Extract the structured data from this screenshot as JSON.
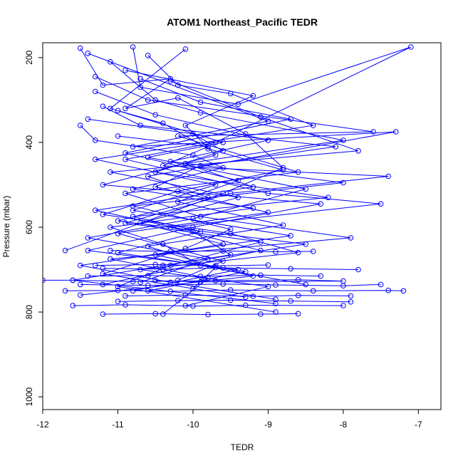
{
  "chart_data": {
    "type": "line",
    "title": "ATOM1 Northeast_Pacific TEDR",
    "xlabel": "TEDR",
    "ylabel": "Pressure (mbar)",
    "xlim": [
      -12.0,
      -6.7
    ],
    "ylim": [
      1030,
      165
    ],
    "y_reversed": true,
    "xticks": [
      -12,
      -11,
      -10,
      -9,
      -8,
      -7
    ],
    "xtick_labels": [
      "-12",
      "-11",
      "-10",
      "-9",
      "-8",
      "-7"
    ],
    "yticks": [
      200,
      400,
      600,
      800,
      1000
    ],
    "ytick_labels": [
      "200",
      "400",
      "600",
      "800",
      "1000"
    ],
    "grid": false,
    "series_color": "#0000ff",
    "marker": "open-circle",
    "series": [
      {
        "name": "",
        "x": [
          -11.5,
          -11.2,
          -10.3,
          -10.9,
          -10.2,
          -9.3,
          -8.8,
          -9.6,
          -11.7
        ],
        "y": [
          178,
          265,
          250,
          320,
          295,
          380,
          460,
          520,
          655
        ]
      },
      {
        "name": "",
        "x": [
          -11.4,
          -9.0,
          -10.8,
          -7.3,
          -10.6,
          -9.8,
          -11.0,
          -8.5,
          -10.4
        ],
        "y": [
          190,
          350,
          410,
          375,
          480,
          530,
          585,
          640,
          690
        ]
      },
      {
        "name": "",
        "x": [
          -11.1,
          -10.5,
          -9.9,
          -8.0,
          -10.1,
          -9.2,
          -11.3,
          -10.0,
          -9.5,
          -11.6,
          -8.9
        ],
        "y": [
          210,
          300,
          330,
          395,
          450,
          505,
          560,
          610,
          665,
          725,
          780
        ]
      },
      {
        "name": "",
        "x": [
          -10.8,
          -10.7,
          -9.4,
          -7.1,
          -9.7,
          -10.9,
          -9.0,
          -7.5,
          -10.3,
          -9.1,
          -11.2
        ],
        "y": [
          175,
          270,
          310,
          175,
          400,
          440,
          520,
          545,
          600,
          655,
          735
        ]
      },
      {
        "name": "",
        "x": [
          -11.4,
          -10.0,
          -9.6,
          -10.5,
          -8.2,
          -10.8,
          -9.9,
          -11.0,
          -9.3,
          -10.6
        ],
        "y": [
          345,
          380,
          420,
          470,
          530,
          575,
          610,
          660,
          705,
          750
        ]
      },
      {
        "name": "",
        "x": [
          -11.0,
          -10.4,
          -9.8,
          -8.8,
          -10.2,
          -11.2,
          -9.5,
          -8.6,
          -10.7,
          -9.0,
          -10.1
        ],
        "y": [
          325,
          355,
          415,
          465,
          515,
          570,
          615,
          660,
          700,
          740,
          785
        ]
      },
      {
        "name": "",
        "x": [
          -10.3,
          -9.1,
          -7.8,
          -11.1,
          -9.4,
          -10.7,
          -9.6,
          -11.5,
          -10.3,
          -8.9
        ],
        "y": [
          255,
          340,
          420,
          470,
          530,
          590,
          640,
          690,
          730,
          770
        ]
      },
      {
        "name": "",
        "x": [
          -11.3,
          -10.6,
          -7.6,
          -10.2,
          -8.6,
          -10.9,
          -9.9,
          -7.9,
          -11.1,
          -9.8,
          -10.4
        ],
        "y": [
          245,
          300,
          375,
          385,
          470,
          520,
          575,
          625,
          675,
          720,
          805
        ]
      },
      {
        "name": "",
        "x": [
          -10.9,
          -9.2,
          -10.1,
          -9.7,
          -11.2,
          -8.3,
          -10.0,
          -11.4,
          -9.4,
          -10.8
        ],
        "y": [
          230,
          290,
          360,
          430,
          500,
          545,
          600,
          655,
          700,
          750
        ]
      },
      {
        "name": "",
        "x": [
          -11.2,
          -10.7,
          -8.1,
          -9.9,
          -10.5,
          -9.0,
          -11.0,
          -9.6,
          -10.2
        ],
        "y": [
          315,
          360,
          410,
          455,
          505,
          565,
          615,
          680,
          725
        ]
      },
      {
        "name": "",
        "x": [
          -10.6,
          -10.2,
          -9.5,
          -8.4,
          -11.3,
          -9.7,
          -10.8,
          -8.7,
          -10.5,
          -9.2,
          -11.5
        ],
        "y": [
          195,
          265,
          285,
          360,
          440,
          500,
          560,
          620,
          665,
          715,
          760
        ]
      },
      {
        "name": "",
        "x": [
          -11.0,
          -9.8,
          -10.4,
          -7.4,
          -9.5,
          -10.9,
          -9.1,
          -10.3,
          -11.0,
          -8.9
        ],
        "y": [
          385,
          410,
          455,
          480,
          520,
          590,
          635,
          690,
          740,
          800
        ]
      },
      {
        "name": "",
        "x": [
          -10.1,
          -11.1,
          -9.6,
          -10.6,
          -8.5,
          -10.0,
          -11.4,
          -9.8,
          -10.7
        ],
        "y": [
          180,
          320,
          400,
          435,
          510,
          580,
          625,
          675,
          730
        ]
      },
      {
        "name": "",
        "x": [
          -11.3,
          -10.5,
          -9.0,
          -10.3,
          -8.0,
          -10.8,
          -9.5,
          -10.1,
          -11.2,
          -9.3
        ],
        "y": [
          280,
          335,
          395,
          445,
          495,
          550,
          605,
          650,
          710,
          765
        ]
      },
      {
        "name": "",
        "x": [
          -10.7,
          -9.9,
          -8.7,
          -10.9,
          -9.4,
          -10.2,
          -8.8,
          -10.6,
          -9.7,
          -10.0
        ],
        "y": [
          250,
          305,
          345,
          425,
          490,
          540,
          595,
          645,
          695,
          745
        ]
      },
      {
        "name": "",
        "x": [
          -11.5,
          -11.3,
          -10.0,
          -9.6,
          -10.8,
          -9.2,
          -11.1,
          -10.4,
          -9.9,
          -8.5
        ],
        "y": [
          360,
          395,
          430,
          460,
          510,
          555,
          600,
          640,
          690,
          735
        ]
      },
      {
        "name": "",
        "x": [
          -12.0,
          -11.6,
          -10.8,
          -9.7,
          -8.6,
          -8.0,
          -9.9,
          -10.5
        ],
        "y": [
          725,
          725,
          728,
          726,
          724,
          727,
          729,
          726
        ]
      },
      {
        "name": "",
        "x": [
          -11.7,
          -11.0,
          -10.3,
          -9.5,
          -8.4,
          -7.4,
          -7.2
        ],
        "y": [
          750,
          749,
          751,
          748,
          750,
          749,
          750
        ]
      },
      {
        "name": "",
        "x": [
          -11.5,
          -10.6,
          -9.6,
          -8.9,
          -8.0,
          -7.5
        ],
        "y": [
          735,
          737,
          734,
          736,
          738,
          735
        ]
      },
      {
        "name": "",
        "x": [
          -11.2,
          -10.5,
          -9.8,
          -9.1,
          -8.6
        ],
        "y": [
          805,
          804,
          806,
          805,
          804
        ]
      },
      {
        "name": "",
        "x": [
          -11.6,
          -10.9,
          -10.0,
          -9.3,
          -8.0
        ],
        "y": [
          785,
          783,
          786,
          784,
          785
        ]
      },
      {
        "name": "",
        "x": [
          -11.2,
          -10.4,
          -9.6,
          -8.7,
          -7.8
        ],
        "y": [
          697,
          699,
          696,
          698,
          700
        ]
      },
      {
        "name": "",
        "x": [
          -11.0,
          -10.2,
          -9.5,
          -8.7,
          -7.9
        ],
        "y": [
          775,
          773,
          772,
          774,
          776
        ]
      },
      {
        "name": "",
        "x": [
          -11.4,
          -10.6,
          -9.9,
          -9.1,
          -8.3
        ],
        "y": [
          715,
          714,
          716,
          713,
          715
        ]
      },
      {
        "name": "",
        "x": [
          -11.1,
          -10.3,
          -9.6,
          -8.9,
          -8.4
        ],
        "y": [
          655,
          657,
          656,
          658,
          657
        ]
      },
      {
        "name": "",
        "x": [
          -10.9,
          -10.1,
          -9.2,
          -8.6,
          -7.9
        ],
        "y": [
          762,
          760,
          763,
          761,
          762
        ]
      },
      {
        "name": "",
        "x": [
          -11.3,
          -10.5,
          -9.7,
          -9.0
        ],
        "y": [
          690,
          688,
          691,
          689
        ]
      }
    ]
  }
}
